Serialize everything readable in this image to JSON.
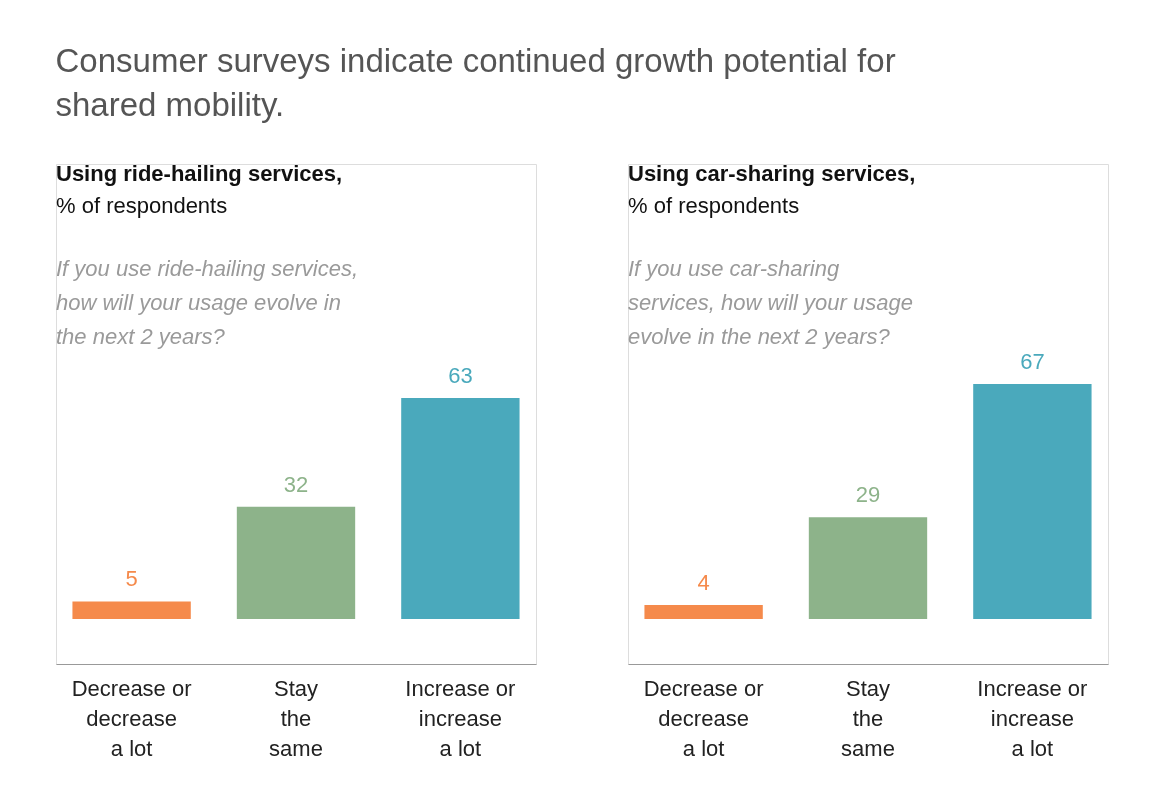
{
  "chart_data": [
    {
      "type": "bar",
      "title": "Using ride-hailing services,",
      "subtitle": "% of respondents",
      "annotations": [
        "Consumer surveys indicate continued growth potential for\nshared mobility.",
        "If you use ride-hailing services,\nhow will your usage evolve in\nthe next 2 years?"
      ],
      "categories": [
        "Decrease or\ndecrease\na lot",
        "Stay\nthe\nsame",
        "Increase or\nincrease\na lot"
      ],
      "values": [
        5,
        32,
        63
      ],
      "colors": [
        "#f58a4b",
        "#8db38a",
        "#4aa9bc"
      ],
      "data_labels": true,
      "tick_labels": "x"
    },
    {
      "type": "bar",
      "title": "Using car-sharing services,",
      "subtitle": "% of respondents",
      "annotations": [
        "If you use car-sharing\nservices, how will your usage\nevolve in the next 2 years?"
      ],
      "categories": [
        "Decrease or\ndecrease\na lot",
        "Stay\nthe\nsame",
        "Increase or\nincrease\na lot"
      ],
      "values": [
        4,
        29,
        67
      ],
      "colors": [
        "#f58a4b",
        "#8db38a",
        "#4aa9bc"
      ],
      "data_labels": true,
      "tick_labels": "x"
    }
  ]
}
